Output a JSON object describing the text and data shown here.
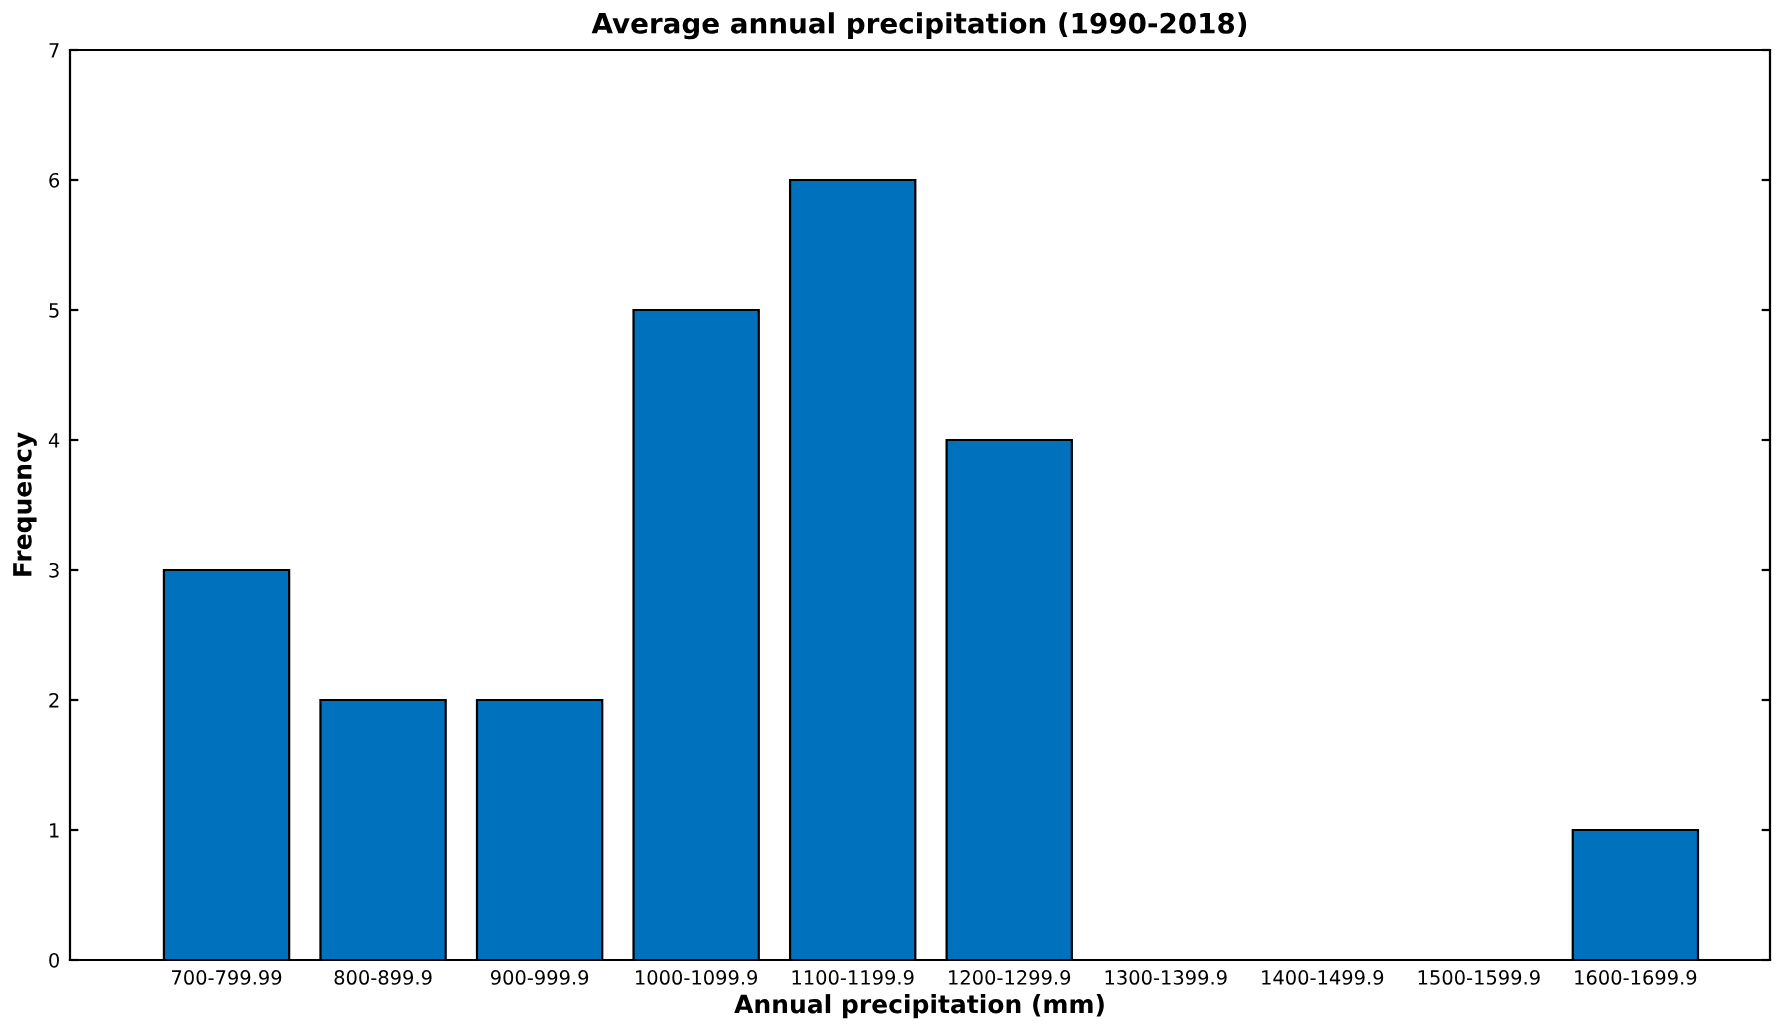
{
  "chart_data": {
    "type": "bar",
    "title": "Average annual precipitation (1990-2018)",
    "xlabel": "Annual precipitation (mm)",
    "ylabel": "Frequency",
    "categories": [
      "700-799.99",
      "800-899.9",
      "900-999.9",
      "1000-1099.9",
      "1100-1199.9",
      "1200-1299.9",
      "1300-1399.9",
      "1400-1499.9",
      "1500-1599.9",
      "1600-1699.9"
    ],
    "values": [
      3,
      2,
      2,
      5,
      6,
      4,
      0,
      0,
      0,
      1
    ],
    "color": "#0072bd",
    "ylim": [
      0,
      7
    ],
    "yticks": [
      0,
      1,
      2,
      3,
      4,
      5,
      6,
      7
    ],
    "grid": false,
    "legend": false
  }
}
